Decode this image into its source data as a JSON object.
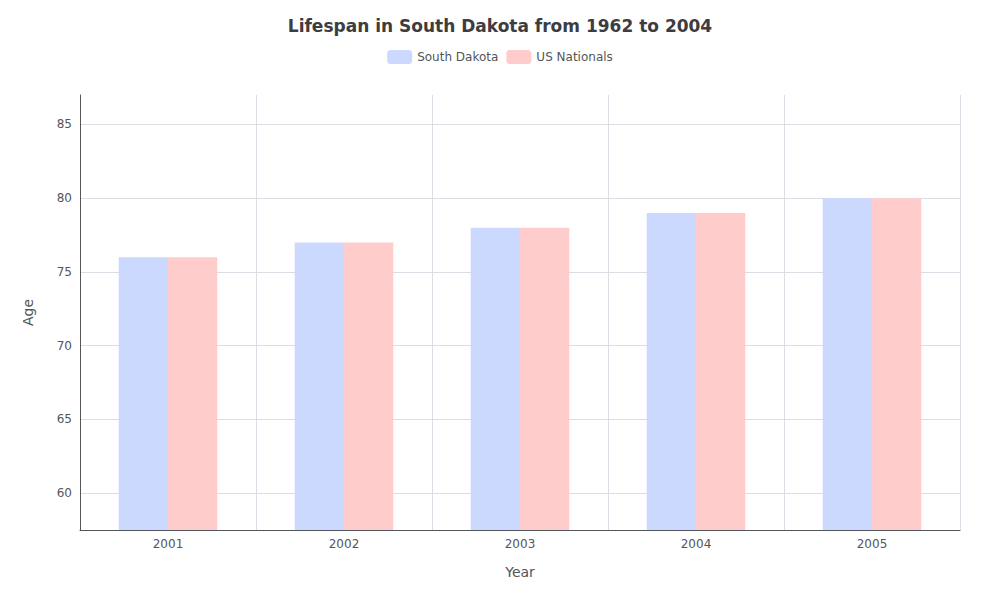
{
  "chart_data": {
    "type": "bar",
    "title": "Lifespan in South Dakota from 1962 to 2004",
    "xlabel": "Year",
    "ylabel": "Age",
    "categories": [
      "2001",
      "2002",
      "2003",
      "2004",
      "2005"
    ],
    "series": [
      {
        "name": "South Dakota",
        "color": "#ccd9ff",
        "values": [
          76,
          77,
          78,
          79,
          80
        ]
      },
      {
        "name": "US Nationals",
        "color": "#ffcccc",
        "values": [
          76,
          77,
          78,
          79,
          80
        ]
      }
    ],
    "ylim": [
      57.5,
      87
    ],
    "yticks": [
      60,
      65,
      70,
      75,
      80,
      85
    ],
    "grid": true,
    "legend": "top"
  }
}
